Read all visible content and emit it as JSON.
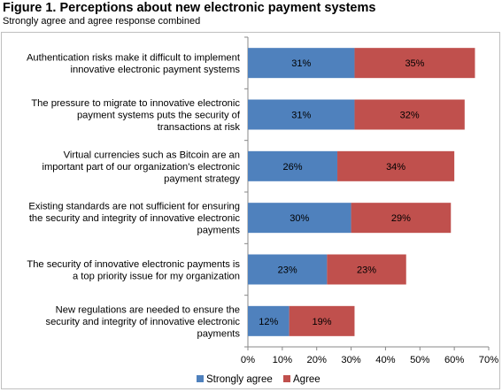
{
  "title": "Figure 1. Perceptions about new electronic payment systems",
  "subtitle": "Strongly agree and agree response combined",
  "chart_data": {
    "type": "bar",
    "orientation": "horizontal",
    "stacked": true,
    "categories": [
      [
        "Authentication risks make it difficult to implement",
        "innovative electronic payment systems"
      ],
      [
        "The pressure to migrate to innovative electronic",
        "payment systems puts the security of",
        "transactions at risk"
      ],
      [
        "Virtual currencies such as Bitcoin are an",
        "important part of our organization's electronic",
        "payment strategy"
      ],
      [
        "Existing standards are not sufficient for ensuring",
        "the security and integrity of innovative electronic",
        "payments"
      ],
      [
        "The security of innovative electronic payments is",
        "a top priority issue for my organization"
      ],
      [
        "New regulations are needed to ensure the",
        "security and integrity of innovative electronic",
        "payments"
      ]
    ],
    "series": [
      {
        "name": "Strongly agree",
        "values": [
          31,
          31,
          26,
          30,
          23,
          12
        ],
        "color": "#4f81bd"
      },
      {
        "name": "Agree",
        "values": [
          35,
          32,
          34,
          29,
          23,
          19
        ],
        "color": "#c0504d"
      }
    ],
    "xlim": [
      0,
      70
    ],
    "xticks": [
      "0%",
      "10%",
      "20%",
      "30%",
      "40%",
      "50%",
      "60%",
      "70%"
    ],
    "value_suffix": "%",
    "grid": false,
    "legend_position": "bottom"
  }
}
